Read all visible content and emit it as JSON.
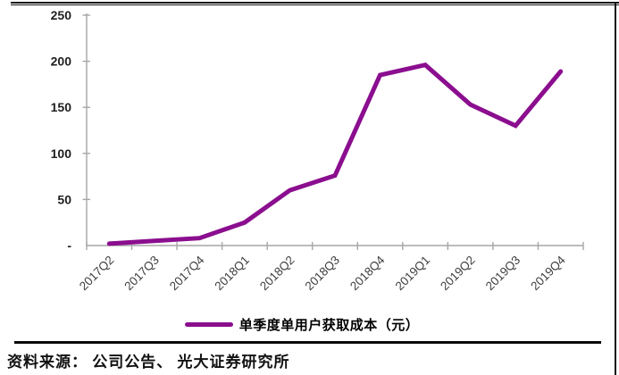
{
  "chart_data": {
    "type": "line",
    "title": "",
    "xlabel": "",
    "ylabel": "",
    "categories": [
      "2017Q2",
      "2017Q3",
      "2017Q4",
      "2018Q1",
      "2018Q2",
      "2018Q3",
      "2018Q4",
      "2019Q1",
      "2019Q2",
      "2019Q3",
      "2019Q4"
    ],
    "series": [
      {
        "name": "单季度单用户获取成本（元）",
        "values": [
          2,
          5,
          8,
          25,
          60,
          76,
          185,
          196,
          153,
          130,
          189
        ],
        "color": "#8B0E8F"
      }
    ],
    "ylim": [
      0,
      250
    ],
    "yticks": [
      0,
      50,
      100,
      150,
      200,
      250
    ],
    "ytick_labels": [
      "-",
      "50",
      "100",
      "150",
      "200",
      "250"
    ],
    "grid": false,
    "legend_position": "bottom-center",
    "axis_color": "#A6A6A6",
    "tick_label_color": "#3F3F3F",
    "ytick_label_color": "#1F1F1F"
  },
  "legend": {
    "label": "单季度单用户获取成本（元）",
    "swatch_color": "#8B0E8F"
  },
  "footer": {
    "source_text": "资料来源： 公司公告、 光大证券研究所"
  }
}
